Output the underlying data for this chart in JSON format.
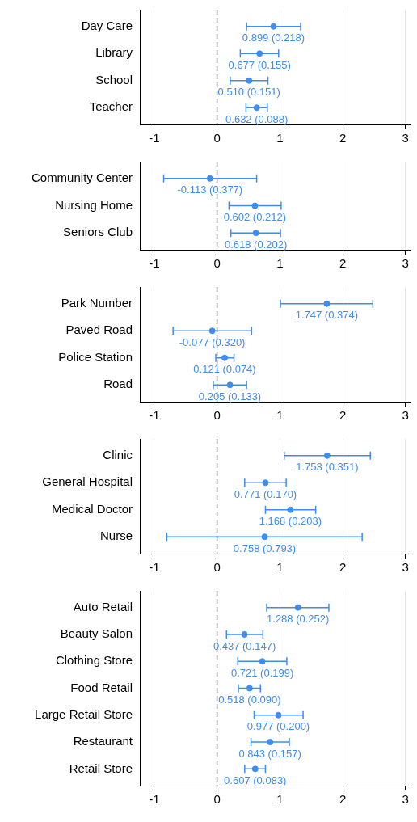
{
  "chart_data": [
    {
      "type": "scatter",
      "orientation": "horizontal",
      "categories": [
        "Day Care",
        "Library",
        "School",
        "Teacher"
      ],
      "values": [
        0.899,
        0.677,
        0.51,
        0.632
      ],
      "errors": [
        [
          0.47,
          1.33
        ],
        [
          0.37,
          0.98
        ],
        [
          0.21,
          0.81
        ],
        [
          0.46,
          0.8
        ]
      ],
      "value_labels": [
        "0.899 (0.218)",
        "0.677 (0.155)",
        "0.510 (0.151)",
        "0.632 (0.088)"
      ],
      "color": "#3d8ef0",
      "marker": "circle",
      "xlim": [
        -1.23,
        3.08
      ],
      "xticks": [
        -1,
        0,
        1,
        2,
        3
      ],
      "grid": "x",
      "ref_lines": [
        {
          "axis": "x",
          "value": 0,
          "color": "#808080",
          "line_style": "dashed"
        }
      ]
    },
    {
      "type": "scatter",
      "orientation": "horizontal",
      "categories": [
        "Community Center",
        "Nursing Home",
        "Seniors Club"
      ],
      "values": [
        -0.113,
        0.602,
        0.618
      ],
      "errors": [
        [
          -0.85,
          0.63
        ],
        [
          0.19,
          1.02
        ],
        [
          0.22,
          1.01
        ]
      ],
      "value_labels": [
        "-0.113 (0.377)",
        "0.602 (0.212)",
        "0.618 (0.202)"
      ],
      "color": "#3d8ef0",
      "marker": "circle",
      "xlim": [
        -1.23,
        3.08
      ],
      "xticks": [
        -1,
        0,
        1,
        2,
        3
      ],
      "grid": "x",
      "ref_lines": [
        {
          "axis": "x",
          "value": 0,
          "color": "#808080",
          "line_style": "dashed"
        }
      ]
    },
    {
      "type": "scatter",
      "orientation": "horizontal",
      "categories": [
        "Park Number",
        "Paved Road",
        "Police Station",
        "Road"
      ],
      "values": [
        1.747,
        -0.077,
        0.121,
        0.205
      ],
      "errors": [
        [
          1.01,
          2.48
        ],
        [
          -0.7,
          0.55
        ],
        [
          -0.02,
          0.27
        ],
        [
          -0.06,
          0.47
        ]
      ],
      "value_labels": [
        "1.747 (0.374)",
        "-0.077 (0.320)",
        "0.121 (0.074)",
        "0.205 (0.133)"
      ],
      "color": "#3d8ef0",
      "marker": "circle",
      "xlim": [
        -1.23,
        3.08
      ],
      "xticks": [
        -1,
        0,
        1,
        2,
        3
      ],
      "grid": "x",
      "ref_lines": [
        {
          "axis": "x",
          "value": 0,
          "color": "#808080",
          "line_style": "dashed"
        }
      ]
    },
    {
      "type": "scatter",
      "orientation": "horizontal",
      "categories": [
        "Clinic",
        "General Hospital",
        "Medical Doctor",
        "Nurse"
      ],
      "values": [
        1.753,
        0.771,
        1.168,
        0.758
      ],
      "errors": [
        [
          1.07,
          2.44
        ],
        [
          0.44,
          1.1
        ],
        [
          0.77,
          1.57
        ],
        [
          -0.8,
          2.31
        ]
      ],
      "value_labels": [
        "1.753 (0.351)",
        "0.771 (0.170)",
        "1.168 (0.203)",
        "0.758 (0.793)"
      ],
      "color": "#3d8ef0",
      "marker": "circle",
      "xlim": [
        -1.23,
        3.08
      ],
      "xticks": [
        -1,
        0,
        1,
        2,
        3
      ],
      "grid": "x",
      "ref_lines": [
        {
          "axis": "x",
          "value": 0,
          "color": "#808080",
          "line_style": "dashed"
        }
      ]
    },
    {
      "type": "scatter",
      "orientation": "horizontal",
      "categories": [
        "Auto Retail",
        "Beauty Salon",
        "Clothing Store",
        "Food Retail",
        "Large Retail Store",
        "Restaurant",
        "Retail Store"
      ],
      "values": [
        1.288,
        0.437,
        0.721,
        0.518,
        0.977,
        0.843,
        0.607
      ],
      "errors": [
        [
          0.79,
          1.78
        ],
        [
          0.15,
          0.73
        ],
        [
          0.33,
          1.11
        ],
        [
          0.34,
          0.69
        ],
        [
          0.59,
          1.37
        ],
        [
          0.54,
          1.15
        ],
        [
          0.44,
          0.77
        ]
      ],
      "value_labels": [
        "1.288 (0.252)",
        "0.437 (0.147)",
        "0.721 (0.199)",
        "0.518 (0.090)",
        "0.977 (0.200)",
        "0.843 (0.157)",
        "0.607 (0.083)"
      ],
      "color": "#3d8ef0",
      "marker": "circle",
      "xlim": [
        -1.23,
        3.08
      ],
      "xticks": [
        -1,
        0,
        1,
        2,
        3
      ],
      "grid": "x",
      "ref_lines": [
        {
          "axis": "x",
          "value": 0,
          "color": "#808080",
          "line_style": "dashed"
        }
      ]
    }
  ]
}
